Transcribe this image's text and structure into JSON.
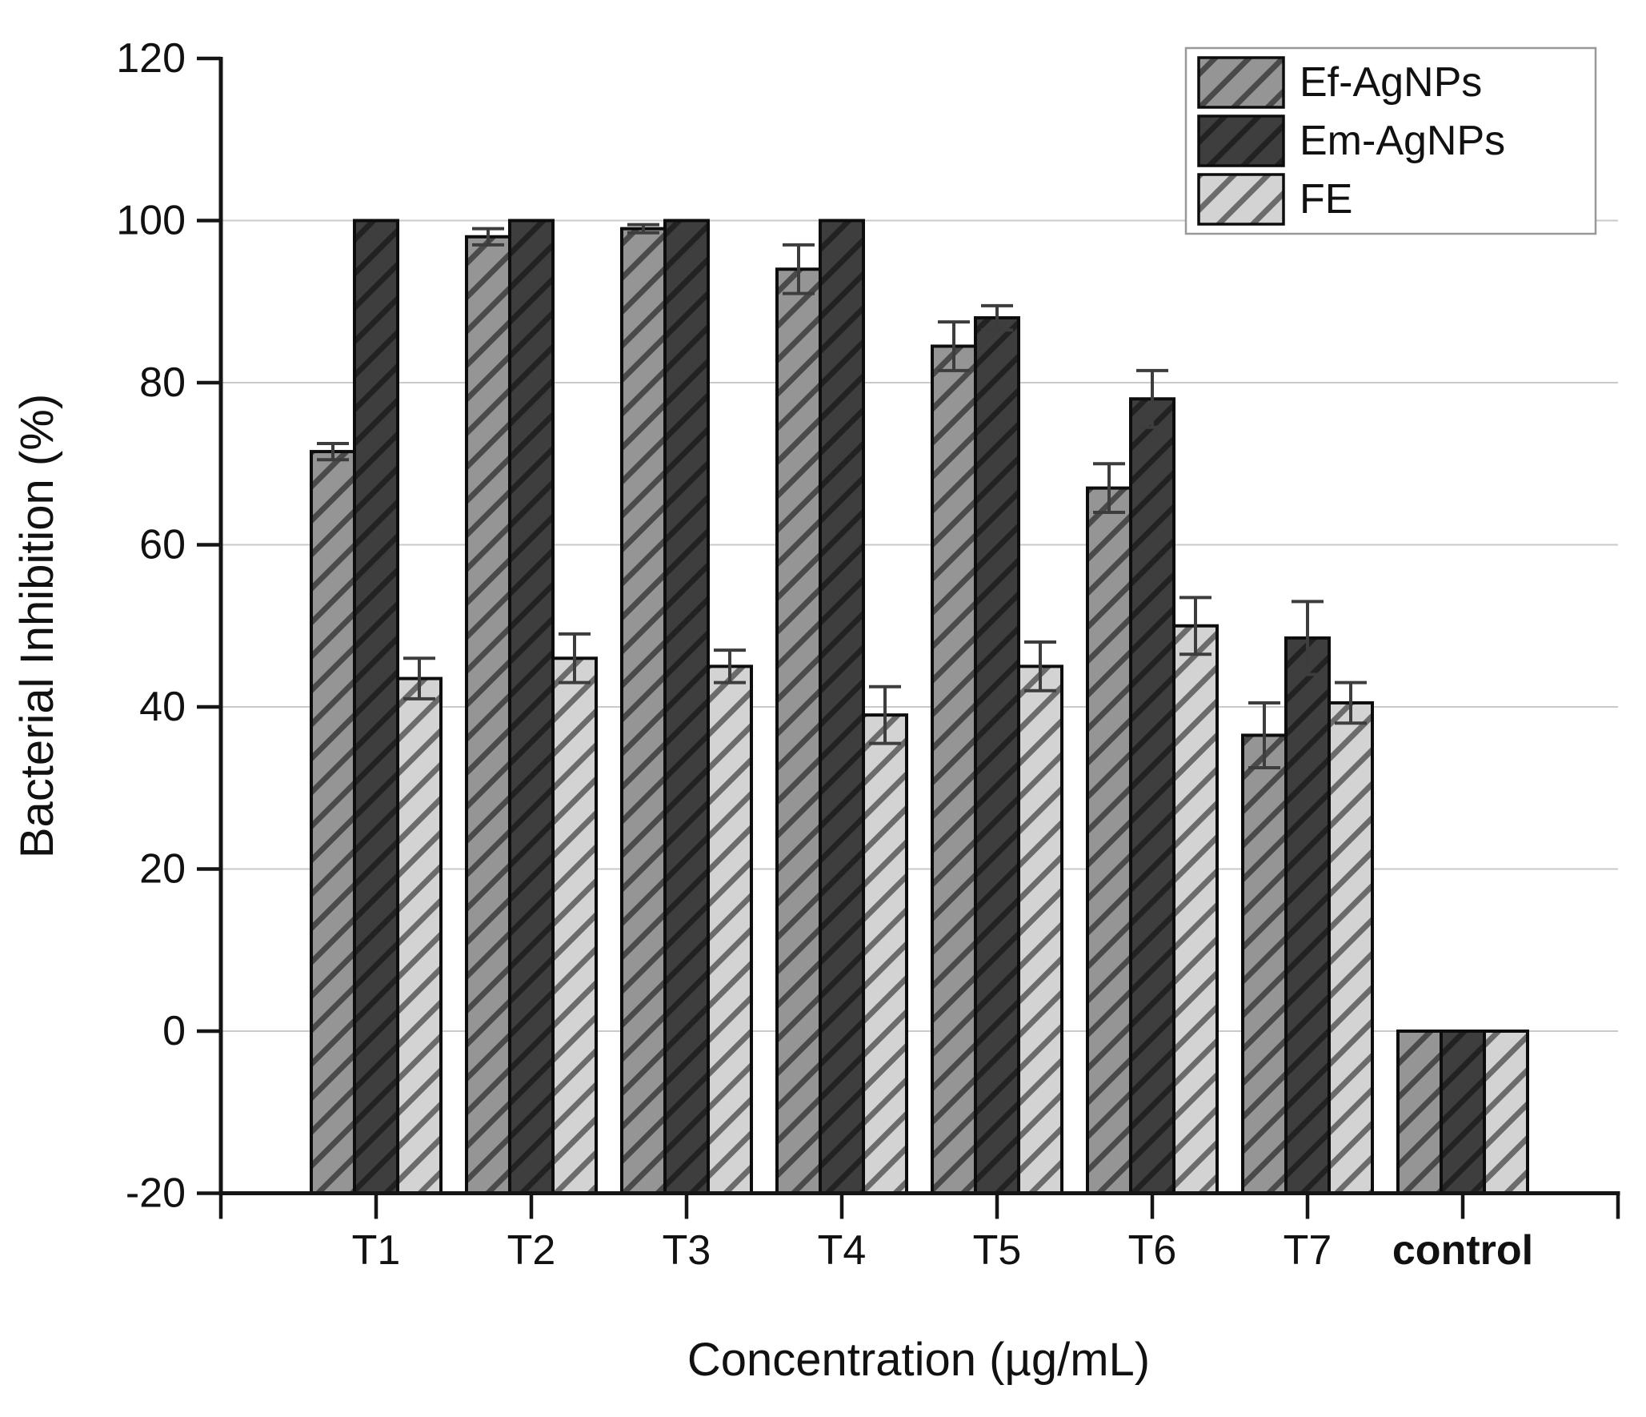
{
  "figure": {
    "background": "#ffffff",
    "text_color": "#111111",
    "axis_color": "#151515",
    "grid_color": "#c9c9c9",
    "bar_border_color": "#0d0d0d",
    "error_bar_color": "#3d3d3d",
    "legend": {
      "border_color": "#999999",
      "background": "#ffffff"
    }
  },
  "chart_data": {
    "type": "bar",
    "title": "",
    "xlabel": "Concentration (µg/mL)",
    "ylabel": "Bacterial Inhibition (%)",
    "categories": [
      "T1",
      "T2",
      "T3",
      "T4",
      "T5",
      "T6",
      "T7",
      "control"
    ],
    "bold_category": "control",
    "ylim": [
      -20,
      120
    ],
    "yticks": [
      120,
      100,
      80,
      60,
      40,
      20,
      0,
      -20
    ],
    "gridline_values": [
      100,
      80,
      60,
      40,
      20,
      0
    ],
    "bar_base": -20,
    "grid": true,
    "legend_position": "top-right",
    "series": [
      {
        "name": "Ef-AgNPs",
        "fill": "#959595",
        "hatch": "#4a4a4a",
        "values": [
          71.5,
          98,
          99,
          94,
          84.5,
          67,
          36.5,
          0
        ],
        "errors": [
          1,
          1,
          0.5,
          3,
          3,
          3,
          4,
          null
        ]
      },
      {
        "name": "Em-AgNPs",
        "fill": "#3e3e3e",
        "hatch": "#222222",
        "values": [
          100,
          100,
          100,
          100,
          88,
          78,
          48.5,
          0
        ],
        "errors": [
          null,
          null,
          null,
          null,
          1.5,
          3.5,
          4.5,
          null
        ]
      },
      {
        "name": "FE",
        "fill": "#d3d3d3",
        "hatch": "#6b6b6b",
        "values": [
          43.5,
          46,
          45,
          39,
          45,
          50,
          40.5,
          0
        ],
        "errors": [
          2.5,
          3,
          2,
          3.5,
          3,
          3.5,
          2.5,
          null
        ]
      }
    ]
  }
}
